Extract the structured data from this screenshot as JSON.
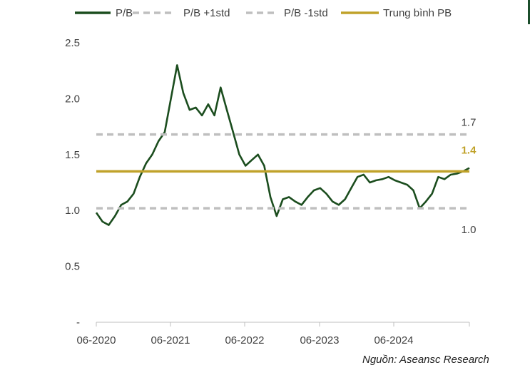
{
  "chart_data": {
    "type": "line",
    "title": "",
    "xlabel": "",
    "ylabel": "",
    "x_ticks": [
      "06-2020",
      "06-2021",
      "06-2022",
      "06-2023",
      "06-2024"
    ],
    "y_ticks": [
      "-",
      "0.5",
      "1.0",
      "1.5",
      "2.0",
      "2.5"
    ],
    "ylim": [
      0,
      2.5
    ],
    "xlim": [
      "2020-06",
      "2025-06"
    ],
    "grid": false,
    "legend_position": "top",
    "series": [
      {
        "name": "P/B",
        "style": "solid",
        "color": "#1b4d1e",
        "points": [
          [
            "2020-06",
            0.98
          ],
          [
            "2020-07",
            0.9
          ],
          [
            "2020-08",
            0.87
          ],
          [
            "2020-09",
            0.95
          ],
          [
            "2020-10",
            1.05
          ],
          [
            "2020-11",
            1.08
          ],
          [
            "2020-12",
            1.15
          ],
          [
            "2021-01",
            1.3
          ],
          [
            "2021-02",
            1.42
          ],
          [
            "2021-03",
            1.5
          ],
          [
            "2021-04",
            1.62
          ],
          [
            "2021-05",
            1.7
          ],
          [
            "2021-06",
            2.0
          ],
          [
            "2021-07",
            2.3
          ],
          [
            "2021-08",
            2.05
          ],
          [
            "2021-09",
            1.9
          ],
          [
            "2021-10",
            1.92
          ],
          [
            "2021-11",
            1.85
          ],
          [
            "2021-12",
            1.95
          ],
          [
            "2022-01",
            1.85
          ],
          [
            "2022-02",
            2.1
          ],
          [
            "2022-03",
            1.9
          ],
          [
            "2022-04",
            1.7
          ],
          [
            "2022-05",
            1.5
          ],
          [
            "2022-06",
            1.4
          ],
          [
            "2022-07",
            1.45
          ],
          [
            "2022-08",
            1.5
          ],
          [
            "2022-09",
            1.4
          ],
          [
            "2022-10",
            1.12
          ],
          [
            "2022-11",
            0.95
          ],
          [
            "2022-12",
            1.1
          ],
          [
            "2023-01",
            1.12
          ],
          [
            "2023-02",
            1.08
          ],
          [
            "2023-03",
            1.05
          ],
          [
            "2023-04",
            1.12
          ],
          [
            "2023-05",
            1.18
          ],
          [
            "2023-06",
            1.2
          ],
          [
            "2023-07",
            1.15
          ],
          [
            "2023-08",
            1.08
          ],
          [
            "2023-09",
            1.05
          ],
          [
            "2023-10",
            1.1
          ],
          [
            "2023-11",
            1.2
          ],
          [
            "2023-12",
            1.3
          ],
          [
            "2024-01",
            1.32
          ],
          [
            "2024-02",
            1.25
          ],
          [
            "2024-03",
            1.27
          ],
          [
            "2024-04",
            1.28
          ],
          [
            "2024-05",
            1.3
          ],
          [
            "2024-06",
            1.27
          ],
          [
            "2024-07",
            1.25
          ],
          [
            "2024-08",
            1.23
          ],
          [
            "2024-09",
            1.18
          ],
          [
            "2024-10",
            1.02
          ],
          [
            "2024-11",
            1.08
          ],
          [
            "2024-12",
            1.15
          ],
          [
            "2025-01",
            1.3
          ],
          [
            "2025-02",
            1.28
          ],
          [
            "2025-03",
            1.32
          ],
          [
            "2025-04",
            1.33
          ],
          [
            "2025-05",
            1.35
          ],
          [
            "2025-06",
            1.38
          ]
        ]
      },
      {
        "name": "P/B +1std",
        "style": "dashed",
        "color": "#bfbfbf",
        "value": 1.68,
        "end_label": "1.7"
      },
      {
        "name": "P/B -1std",
        "style": "dashed",
        "color": "#bfbfbf",
        "value": 1.02,
        "end_label": "1.0"
      },
      {
        "name": "Trung bình PB",
        "style": "solid",
        "color": "#c0a22a",
        "value": 1.35,
        "end_label": "1.4"
      }
    ]
  },
  "source": "Nguồn: Aseansc Research"
}
